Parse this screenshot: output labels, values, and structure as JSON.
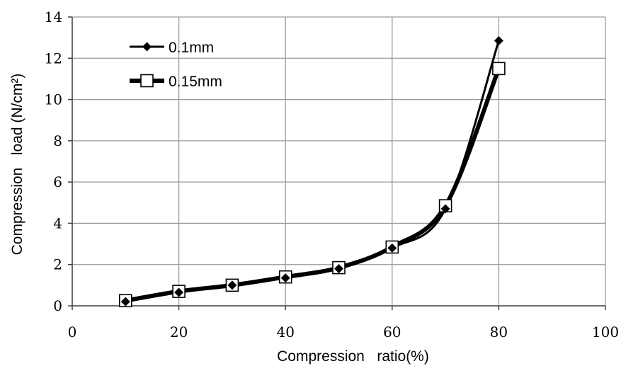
{
  "chart_data": {
    "type": "line",
    "xlabel": "Compression   ratio(%)",
    "ylabel": "Compression   load (N/cm²)",
    "xlim": [
      0,
      100
    ],
    "ylim": [
      0,
      14
    ],
    "xticks": [
      0,
      20,
      40,
      60,
      80,
      100
    ],
    "yticks": [
      0,
      2,
      4,
      6,
      8,
      10,
      12,
      14
    ],
    "grid": true,
    "legend_position": "top-left",
    "series": [
      {
        "name": "0.1mm",
        "marker": "diamond",
        "color": "#000000",
        "x": [
          10,
          20,
          30,
          40,
          50,
          60,
          70,
          80
        ],
        "y": [
          0.2,
          0.65,
          1.0,
          1.35,
          1.8,
          2.8,
          4.7,
          12.85
        ]
      },
      {
        "name": "0.15mm",
        "marker": "square",
        "color": "#000000",
        "x": [
          10,
          20,
          30,
          40,
          50,
          60,
          70,
          80
        ],
        "y": [
          0.25,
          0.7,
          1.0,
          1.4,
          1.85,
          2.85,
          4.85,
          11.5
        ]
      }
    ]
  }
}
